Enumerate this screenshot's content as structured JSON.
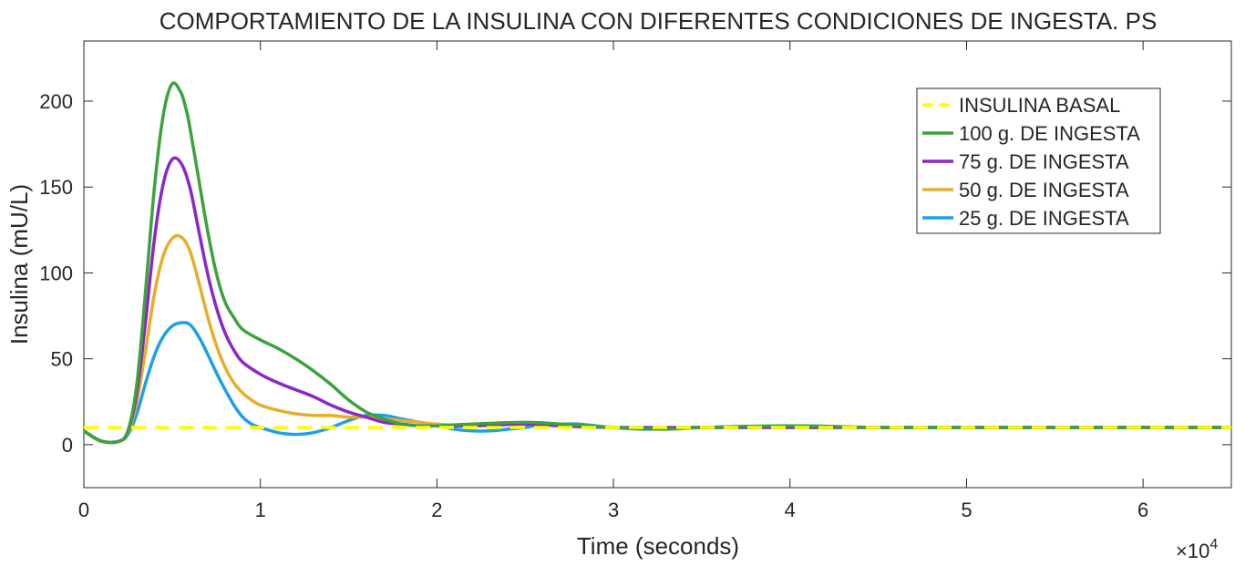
{
  "chart_data": {
    "type": "line",
    "title": "COMPORTAMIENTO DE LA INSULINA CON DIFERENTES CONDICIONES DE INGESTA. PS",
    "xlabel": "Time (seconds)",
    "ylabel": "Insulina (mU/L)",
    "x_multiplier_label": {
      "base": "×10",
      "exp": "4"
    },
    "xlim": [
      0,
      65000
    ],
    "ylim": [
      -25,
      235
    ],
    "x_ticks": [
      0,
      10000,
      20000,
      30000,
      40000,
      50000,
      60000
    ],
    "x_tick_labels": [
      "0",
      "1",
      "2",
      "3",
      "4",
      "5",
      "6"
    ],
    "y_ticks": [
      0,
      50,
      100,
      150,
      200
    ],
    "y_tick_labels": [
      "0",
      "50",
      "100",
      "150",
      "200"
    ],
    "grid": false,
    "legend_position": "top-right",
    "series": [
      {
        "name": "INSULINA BASAL",
        "color": "#ffff00",
        "style": "dashed",
        "x": [
          0,
          65000
        ],
        "y": [
          10,
          10
        ]
      },
      {
        "name": "100 g. DE INGESTA",
        "color": "#3ca23c",
        "style": "solid",
        "x": [
          0,
          1000,
          2000,
          2500,
          3000,
          3500,
          4000,
          4500,
          5000,
          5500,
          5800,
          6000,
          6500,
          7000,
          7500,
          8000,
          8500,
          9000,
          10000,
          11000,
          12000,
          13000,
          14000,
          15000,
          16000,
          17000,
          18000,
          19000,
          20000,
          22000,
          25000,
          27000,
          30000,
          33000,
          35000,
          40000,
          45000,
          50000,
          55000,
          60000,
          65000
        ],
        "y": [
          8,
          2,
          2,
          8,
          35,
          90,
          150,
          192,
          210,
          205,
          195,
          185,
          155,
          125,
          100,
          83,
          74,
          67,
          61,
          56,
          50,
          43,
          35,
          26,
          19,
          15,
          12,
          11,
          11,
          12,
          13,
          12,
          10,
          9,
          10,
          11,
          10,
          10,
          10,
          10,
          10
        ]
      },
      {
        "name": "75 g. DE INGESTA",
        "color": "#8b27c8",
        "style": "solid",
        "x": [
          0,
          1000,
          2000,
          2500,
          3000,
          3500,
          4000,
          4500,
          5000,
          5500,
          6000,
          6500,
          7000,
          7500,
          8000,
          8500,
          9000,
          10000,
          11000,
          12000,
          13000,
          14000,
          15000,
          16000,
          17000,
          18000,
          19000,
          20000,
          22000,
          25000,
          27000,
          30000,
          35000,
          40000,
          45000,
          50000,
          55000,
          60000,
          65000
        ],
        "y": [
          8,
          2,
          2,
          8,
          30,
          72,
          120,
          152,
          166,
          164,
          150,
          125,
          100,
          80,
          65,
          55,
          48,
          41,
          36,
          32,
          28,
          23,
          19,
          16,
          13,
          12,
          11,
          11,
          11,
          12,
          11,
          10,
          10,
          10,
          10,
          10,
          10,
          10,
          10
        ]
      },
      {
        "name": "50 g. DE INGESTA",
        "color": "#e6ae28",
        "style": "solid",
        "x": [
          0,
          1000,
          2000,
          2500,
          3000,
          3500,
          4000,
          4500,
          5000,
          5500,
          6000,
          6500,
          7000,
          7500,
          8000,
          8500,
          9000,
          9500,
          10000,
          11000,
          12000,
          13000,
          14000,
          15000,
          16000,
          17000,
          18000,
          19000,
          20000,
          22000,
          25000,
          27000,
          30000,
          35000,
          40000,
          45000,
          50000,
          55000,
          60000,
          65000
        ],
        "y": [
          8,
          2,
          2,
          7,
          25,
          55,
          88,
          110,
          120,
          121,
          113,
          95,
          75,
          58,
          45,
          36,
          30,
          26,
          23,
          20,
          18,
          17,
          17,
          16,
          16,
          15,
          14,
          13,
          12,
          11,
          12,
          11,
          10,
          10,
          10,
          10,
          10,
          10,
          10,
          10
        ]
      },
      {
        "name": "25 g. DE INGESTA",
        "color": "#1e9fe6",
        "style": "solid",
        "x": [
          0,
          1000,
          2000,
          2500,
          3000,
          3500,
          4000,
          4500,
          5000,
          5500,
          6000,
          6500,
          7000,
          7500,
          8000,
          8500,
          9000,
          9500,
          10000,
          11000,
          12000,
          13000,
          14000,
          15000,
          16000,
          17000,
          18000,
          19000,
          20000,
          21000,
          22000,
          23000,
          24000,
          25000,
          26000,
          27000,
          28000,
          29000,
          30000,
          32000,
          35000,
          40000,
          45000,
          50000,
          55000,
          60000,
          65000
        ],
        "y": [
          8,
          2,
          2,
          6,
          18,
          36,
          52,
          63,
          69,
          71,
          70,
          63,
          53,
          42,
          32,
          23,
          16,
          12,
          10,
          7,
          6,
          7,
          10,
          14,
          17,
          17,
          15,
          13,
          11,
          9,
          8,
          8,
          9,
          10,
          12,
          12,
          12,
          11,
          10,
          9,
          10,
          11,
          10,
          10,
          10,
          10,
          10
        ]
      }
    ]
  }
}
